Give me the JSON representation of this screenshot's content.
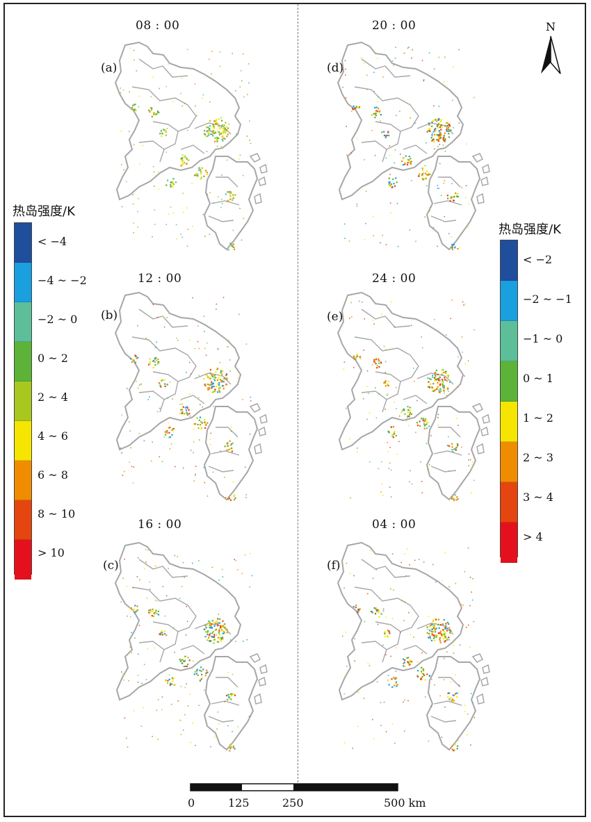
{
  "panels": [
    {
      "id": "a",
      "time": "08 : 00",
      "letter": "(a)",
      "legend": "left"
    },
    {
      "id": "b",
      "time": "12 : 00",
      "letter": "(b)",
      "legend": "left"
    },
    {
      "id": "c",
      "time": "16 : 00",
      "letter": "(c)",
      "legend": "left"
    },
    {
      "id": "d",
      "time": "20 : 00",
      "letter": "(d)",
      "legend": "right"
    },
    {
      "id": "e",
      "time": "24 : 00",
      "letter": "(e)",
      "legend": "right"
    },
    {
      "id": "f",
      "time": "04 : 00",
      "letter": "(f)",
      "legend": "right"
    }
  ],
  "legend_left": {
    "title": "热岛强度/K",
    "classes": [
      {
        "label": "< −4",
        "color": "#1f4e9c"
      },
      {
        "label": "−4 ~ −2",
        "color": "#1a9fdf"
      },
      {
        "label": "−2 ~ 0",
        "color": "#5cbf9a"
      },
      {
        "label": "0 ~ 2",
        "color": "#5cb338"
      },
      {
        "label": "2 ~ 4",
        "color": "#a8c820"
      },
      {
        "label": "4 ~ 6",
        "color": "#f5e500"
      },
      {
        "label": "6 ~ 8",
        "color": "#ef8c00"
      },
      {
        "label": "8 ~ 10",
        "color": "#e5450e"
      },
      {
        "label": "> 10",
        "color": "#e5101e"
      }
    ]
  },
  "legend_right": {
    "title": "热岛强度/K",
    "classes": [
      {
        "label": "< −2",
        "color": "#1f4e9c"
      },
      {
        "label": "−2 ~ −1",
        "color": "#1a9fdf"
      },
      {
        "label": "−1 ~ 0",
        "color": "#5cbf9a"
      },
      {
        "label": "0 ~ 1",
        "color": "#5cb338"
      },
      {
        "label": "1 ~ 2",
        "color": "#f5e500"
      },
      {
        "label": "2 ~ 3",
        "color": "#ef8c00"
      },
      {
        "label": "3 ~ 4",
        "color": "#e5450e"
      },
      {
        "label": "> 4",
        "color": "#e5101e"
      }
    ]
  },
  "north_arrow": {
    "label": "N"
  },
  "scale_bar": {
    "ticks": [
      "0",
      "125",
      "250",
      "500 km"
    ]
  },
  "colors": {
    "boundary": "#a6a6a6",
    "background": "#ffffff"
  }
}
